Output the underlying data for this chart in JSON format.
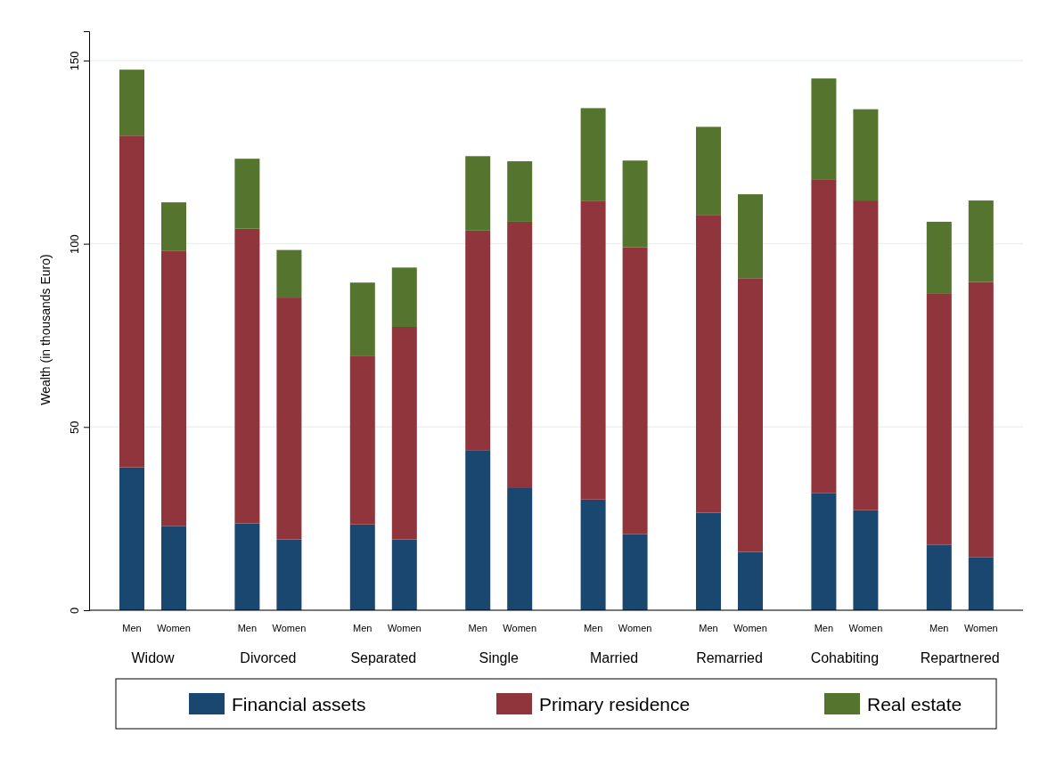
{
  "chart_data": {
    "type": "bar",
    "stacked": true,
    "ylabel": "Wealth (in thousands Euro)",
    "categories": [
      "Men",
      "Women",
      "Men",
      "Women",
      "Men",
      "Women",
      "Men",
      "Women",
      "Men",
      "Women",
      "Men",
      "Women",
      "Men",
      "Women",
      "Men",
      "Women"
    ],
    "annotations": [
      "Widow",
      "Divorced",
      "Separated",
      "Single",
      "Married",
      "Remarried",
      "Cohabiting",
      "Repartnered"
    ],
    "series": [
      {
        "name": "Financial assets",
        "color": "#1a476f",
        "values": [
          39,
          23,
          23.7,
          19.3,
          23.4,
          19.3,
          43.7,
          33.3,
          30.2,
          20.8,
          26.6,
          15.9,
          31.9,
          27.3,
          17.9,
          14.5
        ]
      },
      {
        "name": "Primary residence",
        "color": "#90353b",
        "values": [
          90.5,
          75,
          80.4,
          66,
          45.9,
          58,
          59.9,
          72.7,
          81.4,
          78.2,
          81.1,
          74.7,
          85.7,
          84.5,
          68.6,
          75.1
        ]
      },
      {
        "name": "Real estate",
        "color": "#55752f",
        "values": [
          18,
          13.3,
          19.1,
          13,
          20.1,
          16.2,
          20.3,
          16.5,
          25.4,
          23.7,
          24.2,
          22.9,
          27.5,
          24.9,
          19.5,
          22.2
        ]
      }
    ],
    "ylim": [
      0,
      158
    ],
    "yticks": [
      0,
      50,
      100,
      150
    ],
    "grid": "y",
    "legend": "bottom"
  }
}
